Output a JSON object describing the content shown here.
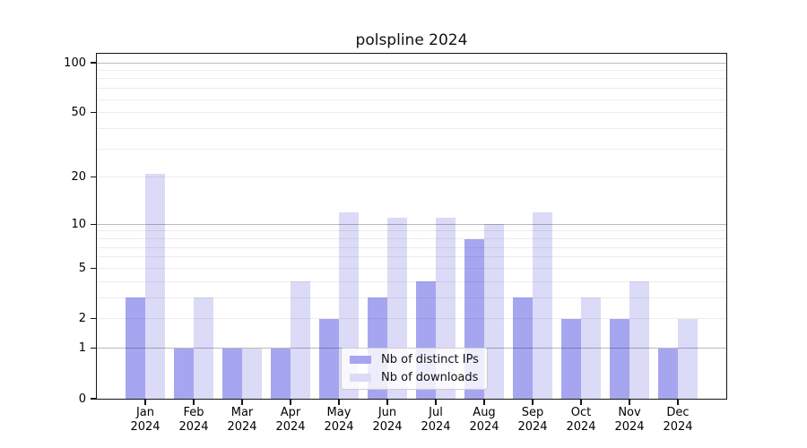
{
  "chart_data": {
    "type": "bar",
    "title": "polspline 2024",
    "categories": [
      "Jan 2024",
      "Feb 2024",
      "Mar 2024",
      "Apr 2024",
      "May 2024",
      "Jun 2024",
      "Jul 2024",
      "Aug 2024",
      "Sep 2024",
      "Oct 2024",
      "Nov 2024",
      "Dec 2024"
    ],
    "x_tick_months": [
      "Jan",
      "Feb",
      "Mar",
      "Apr",
      "May",
      "Jun",
      "Jul",
      "Aug",
      "Sep",
      "Oct",
      "Nov",
      "Dec"
    ],
    "x_tick_year": "2024",
    "series": [
      {
        "name": "Nb of distinct IPs",
        "color": "#a6a6f0",
        "values": [
          3,
          1,
          1,
          1,
          2,
          3,
          4,
          8,
          3,
          2,
          2,
          1
        ]
      },
      {
        "name": "Nb of downloads",
        "color": "#dbdbf8",
        "values": [
          21,
          3,
          1,
          4,
          12,
          11,
          11,
          10,
          12,
          3,
          4,
          2
        ]
      }
    ],
    "y_scale": "log1p",
    "y_ticks": [
      0,
      1,
      2,
      5,
      10,
      20,
      50,
      100
    ],
    "y_major_gridlines": [
      1,
      10,
      100
    ],
    "y_minor_gridlines": [
      2,
      3,
      4,
      5,
      6,
      7,
      8,
      9,
      20,
      30,
      40,
      50,
      60,
      70,
      80,
      90
    ],
    "ylim": [
      0,
      113
    ],
    "grid": true,
    "legend_position": "lower center",
    "bar_width_fraction": 0.4
  },
  "colors": {
    "background": "#ffffff",
    "axis": "#141414",
    "distinct_ips": "#a6a6f0",
    "downloads": "#dbdbf8",
    "major_grid": "#bababa",
    "minor_grid": "#ededed"
  }
}
